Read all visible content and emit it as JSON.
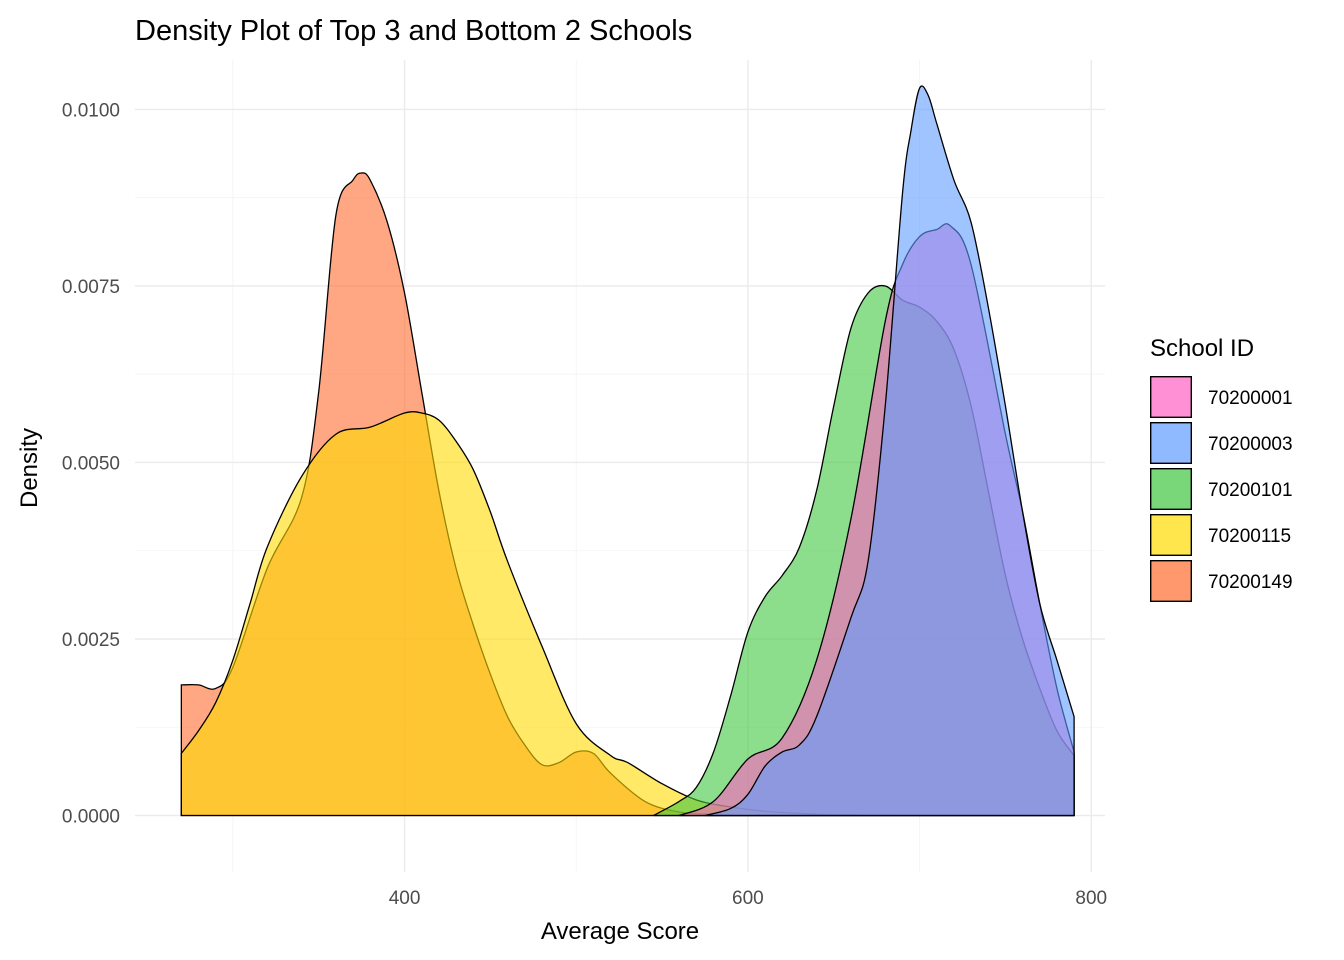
{
  "chart_data": {
    "type": "area",
    "title": "Density Plot of Top 3 and Bottom 2 Schools",
    "xlabel": "Average Score",
    "ylabel": "Density",
    "xlim": [
      243,
      808
    ],
    "ylim": [
      -0.0008,
      0.0107
    ],
    "x_ticks": [
      400,
      600,
      800
    ],
    "x_tick_labels": [
      "400",
      "600",
      "800"
    ],
    "x_minor_ticks": [
      300,
      500,
      700
    ],
    "y_ticks": [
      0,
      0.0025,
      0.005,
      0.0075,
      0.01
    ],
    "y_tick_labels": [
      "0.0000",
      "0.0025",
      "0.0050",
      "0.0075",
      "0.0100"
    ],
    "y_minor_ticks": [
      0.00125,
      0.00375,
      0.00625,
      0.00875
    ],
    "grid": true,
    "legend": {
      "title": "School ID",
      "position": "right"
    },
    "series": [
      {
        "name": "70200001",
        "color": "#ff61c3",
        "x": [
          560,
          580,
          600,
          620,
          640,
          660,
          680,
          690,
          700,
          710,
          718,
          730,
          750,
          760,
          770,
          780,
          790
        ],
        "y": [
          0,
          0.0002,
          0.0008,
          0.0011,
          0.0022,
          0.0042,
          0.007,
          0.0078,
          0.0082,
          0.0083,
          0.00835,
          0.0078,
          0.0054,
          0.0043,
          0.003,
          0.0018,
          0.0009
        ]
      },
      {
        "name": "70200003",
        "color": "#619cff",
        "x": [
          575,
          590,
          600,
          610,
          620,
          630,
          640,
          660,
          670,
          680,
          690,
          695,
          700,
          705,
          710,
          720,
          730,
          740,
          750,
          760,
          770,
          780,
          790
        ],
        "y": [
          0,
          0.0001,
          0.0003,
          0.0007,
          0.0009,
          0.001,
          0.0014,
          0.0028,
          0.0036,
          0.0058,
          0.0088,
          0.0097,
          0.0103,
          0.0102,
          0.0098,
          0.009,
          0.0084,
          0.0072,
          0.0058,
          0.0043,
          0.003,
          0.0022,
          0.0014
        ]
      },
      {
        "name": "70200101",
        "color": "#40c640",
        "x": [
          545,
          560,
          570,
          580,
          590,
          600,
          610,
          620,
          630,
          640,
          650,
          660,
          670,
          680,
          690,
          700,
          710,
          720,
          730,
          740,
          750,
          760,
          770,
          780,
          790
        ],
        "y": [
          0,
          0.0002,
          0.0004,
          0.0009,
          0.0017,
          0.0026,
          0.0031,
          0.0034,
          0.0038,
          0.0046,
          0.0058,
          0.0069,
          0.0074,
          0.0075,
          0.0073,
          0.0072,
          0.007,
          0.0066,
          0.0058,
          0.0046,
          0.0034,
          0.0025,
          0.0018,
          0.0012,
          0.00085
        ]
      },
      {
        "name": "70200115",
        "color": "#ffdb00",
        "x": [
          270,
          280,
          290,
          300,
          310,
          320,
          340,
          360,
          380,
          400,
          410,
          420,
          430,
          440,
          450,
          460,
          480,
          500,
          520,
          530,
          550,
          570,
          590,
          610,
          630,
          650,
          700,
          750,
          790
        ],
        "y": [
          0.00088,
          0.0012,
          0.0016,
          0.0022,
          0.003,
          0.0038,
          0.0048,
          0.0054,
          0.0055,
          0.0057,
          0.0057,
          0.0056,
          0.0053,
          0.0049,
          0.0043,
          0.0036,
          0.0024,
          0.0013,
          0.00085,
          0.00075,
          0.00045,
          0.00022,
          0.00012,
          6e-05,
          3e-05,
          1e-05,
          0,
          0,
          0
        ]
      },
      {
        "name": "70200149",
        "color": "#ff6c2e",
        "x": [
          270,
          280,
          290,
          300,
          320,
          340,
          350,
          360,
          370,
          375,
          380,
          390,
          400,
          410,
          420,
          430,
          440,
          450,
          460,
          470,
          480,
          490,
          500,
          510,
          520,
          540,
          560,
          580,
          600,
          650,
          700,
          790
        ],
        "y": [
          0.00185,
          0.00185,
          0.0018,
          0.0021,
          0.0035,
          0.0045,
          0.006,
          0.0085,
          0.009,
          0.0091,
          0.009,
          0.0084,
          0.0074,
          0.006,
          0.0046,
          0.0035,
          0.0027,
          0.002,
          0.0014,
          0.001,
          0.00072,
          0.00075,
          0.0009,
          0.00088,
          0.0006,
          0.0002,
          5e-05,
          2e-05,
          0,
          0,
          0,
          0
        ]
      }
    ]
  }
}
